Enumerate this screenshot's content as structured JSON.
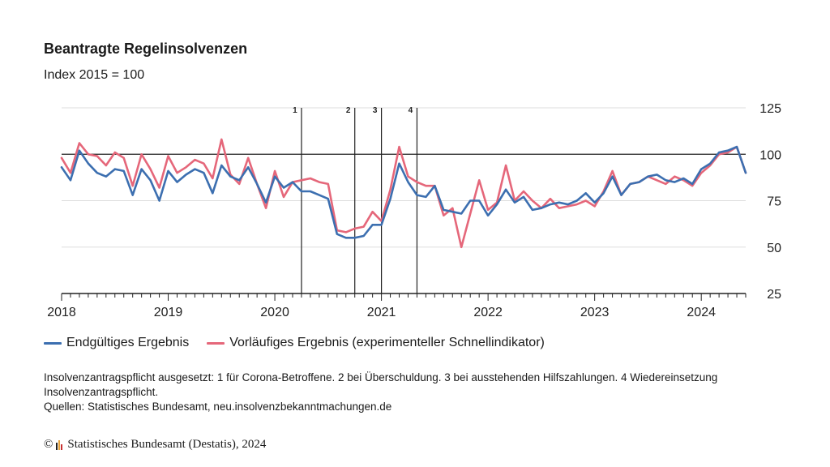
{
  "title": "Beantragte Regelinsolvenzen",
  "subtitle": "Index 2015 = 100",
  "colors": {
    "final": "#3c6fb0",
    "prelim": "#e5677a",
    "grid": "#dddddd",
    "axis": "#222222"
  },
  "chart_data": {
    "type": "line",
    "title": "Beantragte Regelinsolvenzen",
    "subtitle": "Index 2015 = 100",
    "xlabel": "",
    "ylabel": "",
    "x_start": "2018-01",
    "x_end": "2024-06",
    "x_tick_labels": [
      "2018",
      "2019",
      "2020",
      "2021",
      "2022",
      "2023",
      "2024"
    ],
    "y_ticks": [
      25,
      50,
      75,
      100,
      125
    ],
    "ylim": [
      25,
      125
    ],
    "reference_line": 100,
    "y_axis_side": "right",
    "legend_position": "bottom-left",
    "markers": [
      {
        "label": "1",
        "date": "2020-04"
      },
      {
        "label": "2",
        "date": "2020-10"
      },
      {
        "label": "3",
        "date": "2021-01"
      },
      {
        "label": "4",
        "date": "2021-05"
      }
    ],
    "series": [
      {
        "name": "Endgültiges Ergebnis",
        "start": "2018-01",
        "values": [
          93,
          86,
          102,
          95,
          90,
          88,
          92,
          91,
          78,
          92,
          86,
          75,
          91,
          85,
          89,
          92,
          90,
          79,
          94,
          88,
          86,
          93,
          84,
          74,
          88,
          82,
          85,
          80,
          80,
          78,
          76,
          57,
          55,
          55,
          56,
          62,
          62,
          76,
          95,
          85,
          78,
          77,
          83,
          70,
          69,
          68,
          75,
          75,
          67,
          73,
          81,
          74,
          77,
          70,
          71,
          73,
          74,
          73,
          75,
          79,
          74,
          79,
          88,
          78,
          84,
          85,
          88,
          89,
          86,
          85,
          87,
          84,
          92,
          95,
          101,
          102,
          104,
          90
        ]
      },
      {
        "name": "Vorläufiges Ergebnis (experimenteller Schnellindikator)",
        "start": "2018-01",
        "values": [
          98,
          90,
          106,
          100,
          99,
          94,
          101,
          98,
          83,
          100,
          92,
          82,
          99,
          90,
          93,
          97,
          95,
          87,
          108,
          89,
          84,
          98,
          84,
          71,
          91,
          77,
          85,
          86,
          87,
          85,
          84,
          59,
          58,
          60,
          61,
          69,
          64,
          81,
          104,
          88,
          85,
          83,
          83,
          67,
          71,
          50,
          68,
          86,
          70,
          74,
          94,
          75,
          80,
          75,
          71,
          76,
          71,
          72,
          73,
          75,
          72,
          80,
          91,
          78,
          84,
          85,
          88,
          86,
          84,
          88,
          86,
          83,
          90,
          94,
          100,
          101,
          104,
          90
        ]
      }
    ]
  },
  "notes": {
    "line1": "Insolvenzantragspflicht ausgesetzt: 1 für Corona-Betroffene. 2 bei Überschuldung. 3 bei ausstehenden Hilfszahlungen. 4 Wiedereinsetzung Insolvenzantragspflicht.",
    "line2": "Quellen: Statistisches Bundesamt, neu.insolvenzbekanntmachungen.de"
  },
  "footer": {
    "copyright_symbol": "©",
    "text": "Statistisches Bundesamt (Destatis), 2024",
    "logo_colors": [
      "#222222",
      "#e5a23a",
      "#c83232"
    ]
  }
}
